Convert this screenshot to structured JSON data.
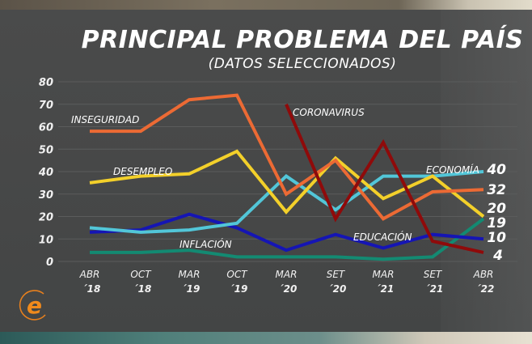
{
  "header": {
    "title": "PRINCIPAL PROBLEMA DEL PAÍS",
    "subtitle": "(DATOS SELECCIONADOS)"
  },
  "logo": {
    "icon": "e-logo-icon",
    "letter": "e",
    "color": "#f08a1c"
  },
  "chart_data": {
    "type": "line",
    "title": "PRINCIPAL PROBLEMA DEL PAÍS",
    "subtitle": "(DATOS SELECCIONADOS)",
    "xlabel": "",
    "ylabel": "",
    "ylim": [
      0,
      80
    ],
    "yticks": [
      0,
      10,
      20,
      30,
      40,
      50,
      60,
      70,
      80
    ],
    "grid": true,
    "legend": "inline labels",
    "categories": [
      "ABR ´18",
      "OCT ´18",
      "MAR ´19",
      "OCT ´19",
      "MAR ´20",
      "SET ´20",
      "MAR ´21",
      "SET ´21",
      "ABR ´22"
    ],
    "category_lines": [
      [
        "ABR",
        "´18"
      ],
      [
        "OCT",
        "´18"
      ],
      [
        "MAR",
        "´19"
      ],
      [
        "OCT",
        "´19"
      ],
      [
        "MAR",
        "´20"
      ],
      [
        "SET",
        "´20"
      ],
      [
        "MAR",
        "´21"
      ],
      [
        "SET",
        "´21"
      ],
      [
        "ABR",
        "´22"
      ]
    ],
    "series": [
      {
        "name": "INSEGURIDAD",
        "color": "#ec6a34",
        "values": [
          58,
          58,
          72,
          74,
          30,
          45,
          19,
          31,
          32
        ],
        "end_label": "32"
      },
      {
        "name": "DESEMPLEO",
        "color": "#f3d02a",
        "values": [
          35,
          38,
          39,
          49,
          22,
          46,
          28,
          38,
          20
        ],
        "end_label": "20"
      },
      {
        "name": "ECONOMÍA",
        "color": "#52c6d8",
        "values": [
          15,
          13,
          14,
          17,
          38,
          23,
          38,
          38,
          40
        ],
        "end_label": "40"
      },
      {
        "name": "EDUCACIÓN",
        "color": "#1515b4",
        "values": [
          13,
          14,
          21,
          15,
          5,
          12,
          6,
          12,
          10
        ],
        "end_label": "10"
      },
      {
        "name": "INFLACIÓN",
        "color": "#138a72",
        "values": [
          4,
          4,
          5,
          2,
          2,
          2,
          1,
          2,
          19
        ],
        "end_label": "19"
      },
      {
        "name": "CORONAVIRUS",
        "color": "#8f0a0a",
        "values": [
          null,
          null,
          null,
          null,
          70,
          19,
          53,
          9,
          4
        ],
        "end_label": "4"
      }
    ]
  }
}
